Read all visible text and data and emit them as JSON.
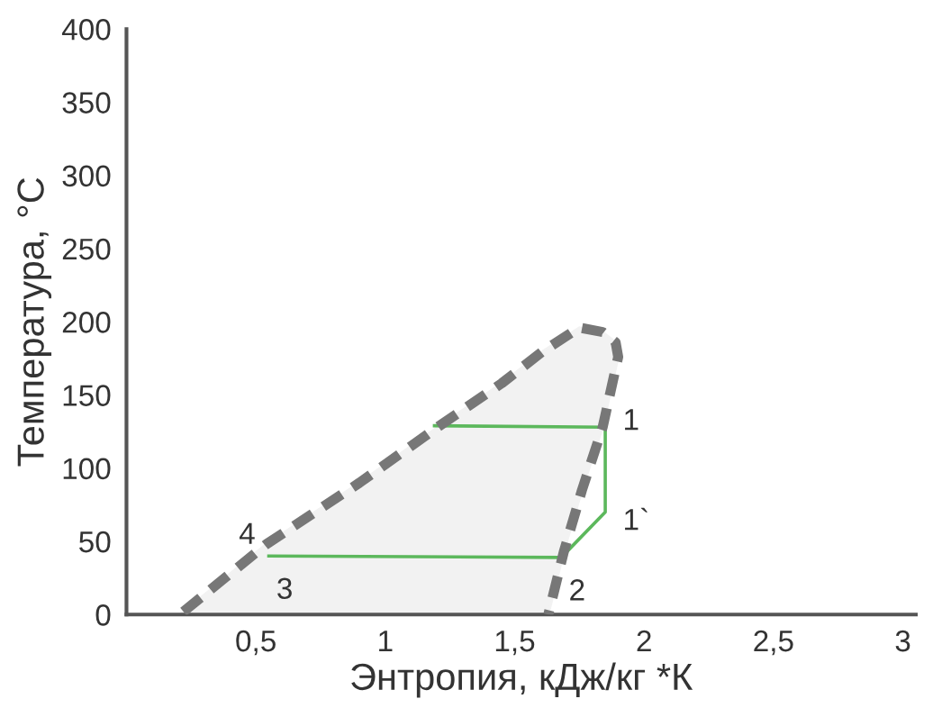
{
  "chart_data": {
    "type": "line",
    "xlabel": "Энтропия, кДж/кг *К",
    "ylabel": "Температура, °C",
    "xlim": [
      0,
      3.05
    ],
    "ylim": [
      0,
      400
    ],
    "xticks": [
      {
        "value": 0.5,
        "label": "0,5"
      },
      1,
      {
        "value": 1.5,
        "label": "1,5"
      },
      2,
      {
        "value": 2.5,
        "label": "2,5"
      },
      3
    ],
    "yticks": [
      0,
      50,
      100,
      150,
      200,
      250,
      300,
      350,
      400
    ],
    "grid": false,
    "legend": false,
    "series": [
      {
        "type": "area",
        "color": "#777777",
        "line_style": "dashed",
        "x": [
          0.22,
          0.54,
          0.9,
          1.21,
          1.45,
          1.61,
          1.75,
          1.84,
          1.89,
          1.9,
          1.84,
          1.76,
          1.69,
          1.63
        ],
        "values": [
          2,
          48,
          90,
          129,
          158,
          180,
          196,
          193,
          186,
          176,
          128,
          85,
          43,
          0
        ]
      },
      {
        "color": "#5cb85c",
        "line_style": "solid",
        "x": [
          0.55,
          1.68,
          1.85,
          1.85,
          1.19
        ],
        "values": [
          40,
          39,
          70,
          128,
          129
        ]
      }
    ],
    "annotations": [
      {
        "text": "1",
        "x": 1.85,
        "y": 128
      },
      {
        "text": "1`",
        "x": 1.85,
        "y": 70
      },
      {
        "text": "2",
        "x": 1.68,
        "y": 39
      },
      {
        "text": "3",
        "x": 0.55,
        "y": 40
      },
      {
        "text": "4",
        "x": 0.55,
        "y": 40
      }
    ]
  }
}
